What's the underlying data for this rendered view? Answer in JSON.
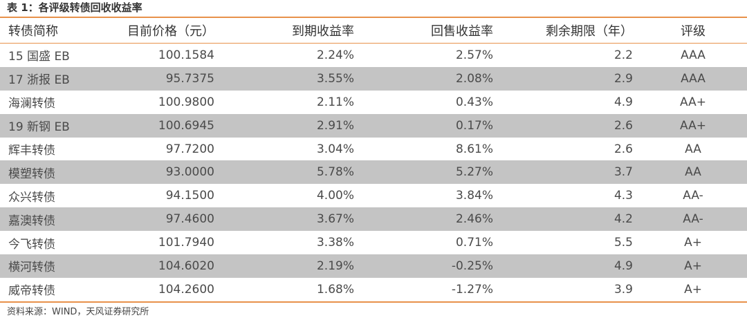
{
  "title": "表 1：各评级转债回收收益率",
  "headers": [
    "转债简称",
    "目前价格（元）",
    "到期收益率",
    "回售收益率",
    "剩余期限（年）",
    "评级"
  ],
  "rows": [
    [
      "15 国盛 EB",
      "100.1584",
      "2.24%",
      "2.57%",
      "2.2",
      "AAA"
    ],
    [
      "17 浙报 EB",
      "95.7375",
      "3.55%",
      "2.08%",
      "2.9",
      "AAA"
    ],
    [
      "海澜转债",
      "100.9800",
      "2.11%",
      "0.43%",
      "4.9",
      "AA+"
    ],
    [
      "19 新钢 EB",
      "100.6945",
      "2.91%",
      "0.17%",
      "2.6",
      "AA+"
    ],
    [
      "辉丰转债",
      "97.7200",
      "3.04%",
      "8.61%",
      "2.6",
      "AA"
    ],
    [
      "模塑转债",
      "93.0000",
      "5.78%",
      "5.27%",
      "3.7",
      "AA"
    ],
    [
      "众兴转债",
      "94.1500",
      "4.00%",
      "3.84%",
      "4.3",
      "AA-"
    ],
    [
      "嘉澳转债",
      "97.4600",
      "3.67%",
      "2.46%",
      "4.2",
      "AA-"
    ],
    [
      "今飞转债",
      "101.7940",
      "3.38%",
      "0.71%",
      "5.5",
      "A+"
    ],
    [
      "横河转债",
      "104.6020",
      "2.19%",
      "-0.25%",
      "4.9",
      "A+"
    ],
    [
      "威帝转债",
      "104.2600",
      "1.68%",
      "-1.27%",
      "3.9",
      "A+"
    ]
  ],
  "source": "资料来源：WIND，天风证券研究所",
  "colors": {
    "accent": "#e8914a",
    "shade": "#c4c4c4"
  }
}
